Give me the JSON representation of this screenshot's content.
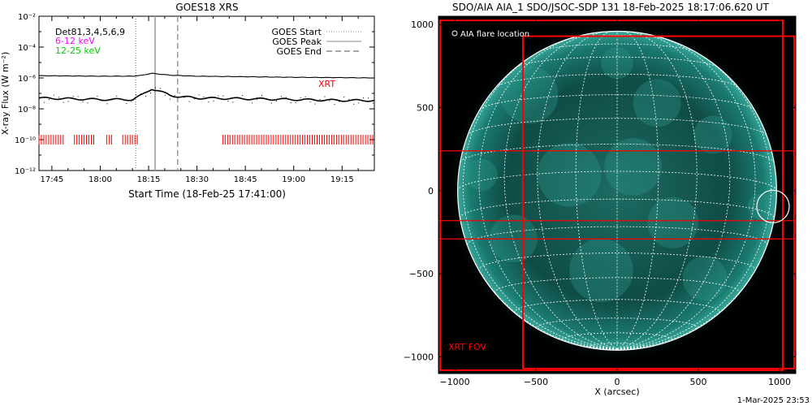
{
  "colors": {
    "flux_line": "#000000",
    "xrt_mark": "#ff0000",
    "label_6_12": "#ff00ff",
    "label_12_25": "#00cc00",
    "fov_box": "#ff0000",
    "sun_disk": "#0e3f3a",
    "grid_line": "#ffffff"
  },
  "left_panel": {
    "title": "GOES18 XRS",
    "ylabel": "X-ray Flux (W m⁻²)",
    "xlabel": "Start Time (18-Feb-25 17:41:00)",
    "det_label": "Det81,3,4,5,6,9",
    "band_6_12": "6-12 keV",
    "band_12_25": "12-25 keV",
    "xrt_label": "XRT",
    "legend": [
      {
        "label": "GOES Start",
        "style": "dotted"
      },
      {
        "label": "GOES Peak",
        "style": "solid"
      },
      {
        "label": "GOES End",
        "style": "dashed"
      }
    ]
  },
  "right_panel": {
    "title": "SDO/AIA AIA_1 SDO/JSOC-SDP 131 18-Feb-2025 18:17:06.620 UT",
    "legend_label": "AIA flare location",
    "legend_icon": "circle-marker-icon",
    "fov_label": "XRT FOV",
    "xlabel": "X (arcsec)",
    "footer": "1-Mar-2025 23:53"
  },
  "chart_data": [
    {
      "type": "line",
      "title": "GOES18 XRS",
      "xlabel": "Start Time (18-Feb-25 17:41:00)",
      "ylabel": "X-ray Flux (W m⁻²)",
      "y_scale": "log",
      "ylim": [
        1e-12,
        0.01
      ],
      "y_ticks": [
        {
          "v": 1e-12,
          "label": "10⁻¹²"
        },
        {
          "v": 1e-10,
          "label": "10⁻¹⁰"
        },
        {
          "v": 1e-08,
          "label": "10⁻⁸"
        },
        {
          "v": 1e-06,
          "label": "10⁻⁶"
        },
        {
          "v": 0.0001,
          "label": "10⁻⁴"
        },
        {
          "v": 0.01,
          "label": "10⁻²"
        }
      ],
      "xlim": [
        "17:41",
        "19:25"
      ],
      "x_ticks": [
        "17:45",
        "18:00",
        "18:15",
        "18:30",
        "18:45",
        "19:00",
        "19:15"
      ],
      "series": [
        {
          "name": "6-12 keV",
          "x": [
            "17:41",
            "17:50",
            "18:00",
            "18:10",
            "18:13",
            "18:16",
            "18:18",
            "18:22",
            "18:30",
            "18:45",
            "19:00",
            "19:15",
            "19:25"
          ],
          "values": [
            1.4e-06,
            1.35e-06,
            1.3e-06,
            1.3e-06,
            1.5e-06,
            2e-06,
            1.8e-06,
            1.5e-06,
            1.3e-06,
            1.2e-06,
            1.1e-06,
            1.05e-06,
            1e-06
          ]
        },
        {
          "name": "12-25 keV",
          "x": [
            "17:41",
            "17:50",
            "18:00",
            "18:10",
            "18:13",
            "18:16",
            "18:18",
            "18:22",
            "18:30",
            "18:45",
            "19:00",
            "19:15",
            "19:25"
          ],
          "values": [
            5e-08,
            4.5e-08,
            4e-08,
            4e-08,
            8e-08,
            2e-07,
            1.5e-07,
            7e-08,
            5e-08,
            4.5e-08,
            4e-08,
            3.5e-08,
            3.5e-08
          ]
        }
      ],
      "markers": [
        {
          "label": "GOES Start",
          "time": "18:11",
          "style": "dotted"
        },
        {
          "label": "GOES Peak",
          "time": "18:17",
          "style": "solid"
        },
        {
          "label": "GOES End",
          "time": "18:24",
          "style": "dashed"
        }
      ],
      "xrt_intervals": [
        [
          "17:41",
          "17:49"
        ],
        [
          "17:52",
          "17:58"
        ],
        [
          "18:02",
          "18:04"
        ],
        [
          "18:07",
          "18:12"
        ],
        [
          "18:38",
          "19:25"
        ]
      ],
      "xrt_level": 1e-10
    },
    {
      "type": "scatter",
      "title": "SDO/AIA AIA_1 SDO/JSOC-SDP 131 18-Feb-2025 18:17:06.620 UT",
      "xlabel": "X (arcsec)",
      "xlim": [
        -1100,
        1100
      ],
      "ylim": [
        -1100,
        1050
      ],
      "x_ticks": [
        -1000,
        -500,
        0,
        500,
        1000
      ],
      "y_ticks": [
        -1000,
        -500,
        0,
        500,
        1000
      ],
      "solar_radius": 982,
      "flare_location": {
        "x": 960,
        "y": -95,
        "r": 100
      },
      "fov_boxes": [
        {
          "x0": -1090,
          "x1": 1020,
          "y0": -1080,
          "y1": 1025
        },
        {
          "x0": -580,
          "x1": 1090,
          "y0": -1070,
          "y1": 930
        }
      ],
      "fov_lines_y": [
        240,
        -180,
        -290
      ]
    }
  ]
}
